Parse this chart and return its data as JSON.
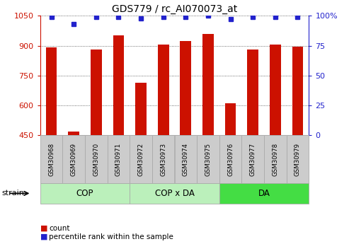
{
  "title": "GDS779 / rc_AI070073_at",
  "samples": [
    "GSM30968",
    "GSM30969",
    "GSM30970",
    "GSM30971",
    "GSM30972",
    "GSM30973",
    "GSM30974",
    "GSM30975",
    "GSM30976",
    "GSM30977",
    "GSM30978",
    "GSM30979"
  ],
  "counts": [
    893,
    468,
    882,
    952,
    715,
    905,
    923,
    960,
    610,
    882,
    905,
    895
  ],
  "percentiles": [
    99,
    93,
    99,
    99,
    98,
    99,
    99,
    100,
    97,
    99,
    99,
    99
  ],
  "ylim_left": [
    450,
    1050
  ],
  "ylim_right": [
    0,
    100
  ],
  "yticks_left": [
    450,
    600,
    750,
    900,
    1050
  ],
  "yticks_right": [
    0,
    25,
    50,
    75,
    100
  ],
  "bar_color": "#cc1100",
  "dot_color": "#2222cc",
  "grid_color": "#444444",
  "bg_color": "#ffffff",
  "groups": [
    {
      "label": "COP",
      "start": 0,
      "end": 3,
      "color": "#bbf0bb"
    },
    {
      "label": "COP x DA",
      "start": 4,
      "end": 7,
      "color": "#bbf0bb"
    },
    {
      "label": "DA",
      "start": 8,
      "end": 11,
      "color": "#44dd44"
    }
  ],
  "legend_count_label": "count",
  "legend_pct_label": "percentile rank within the sample",
  "strain_label": "strain",
  "tick_bg": "#cccccc",
  "tick_border": "#aaaaaa"
}
